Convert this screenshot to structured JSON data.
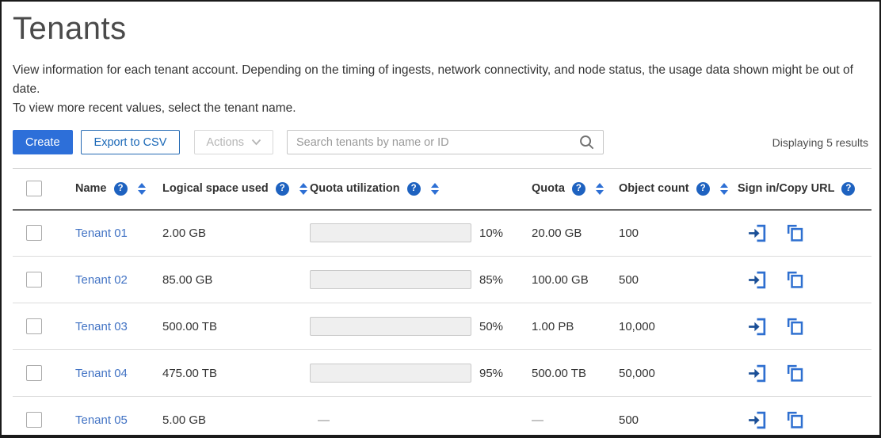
{
  "page": {
    "title": "Tenants",
    "description_line1": "View information for each tenant account. Depending on the timing of ingests, network connectivity, and node status, the usage data shown might be out of date.",
    "description_line2": "To view more recent values, select the tenant name.",
    "results_summary": "Displaying 5 results"
  },
  "toolbar": {
    "create_label": "Create",
    "export_label": "Export to CSV",
    "actions_label": "Actions",
    "search_placeholder": "Search tenants by name or ID"
  },
  "table": {
    "columns": [
      {
        "label": "Name",
        "help": true,
        "sortable": true
      },
      {
        "label": "Logical space used",
        "help": true,
        "sortable": true
      },
      {
        "label": "Quota utilization",
        "help": true,
        "sortable": true
      },
      {
        "label": "Quota",
        "help": true,
        "sortable": true
      },
      {
        "label": "Object count",
        "help": true,
        "sortable": true
      },
      {
        "label": "Sign in/Copy URL",
        "help": true,
        "sortable": false
      }
    ],
    "rows": [
      {
        "name": "Tenant 01",
        "logical_space_used": "2.00 GB",
        "quota_utilization_pct": 10,
        "quota_utilization_label": "10%",
        "bar_color": "#a9dc8e",
        "quota": "20.00 GB",
        "object_count": "100"
      },
      {
        "name": "Tenant 02",
        "logical_space_used": "85.00 GB",
        "quota_utilization_pct": 85,
        "quota_utilization_label": "85%",
        "bar_color": "#f9d98b",
        "quota": "100.00 GB",
        "object_count": "500"
      },
      {
        "name": "Tenant 03",
        "logical_space_used": "500.00 TB",
        "quota_utilization_pct": 50,
        "quota_utilization_label": "50%",
        "bar_color": "#a9dc8e",
        "quota": "1.00 PB",
        "object_count": "10,000"
      },
      {
        "name": "Tenant 04",
        "logical_space_used": "475.00 TB",
        "quota_utilization_pct": 95,
        "quota_utilization_label": "95%",
        "bar_color": "#f6caca",
        "quota": "500.00 TB",
        "object_count": "50,000"
      },
      {
        "name": "Tenant 05",
        "logical_space_used": "5.00 GB",
        "quota_utilization_pct": null,
        "quota_utilization_label": "—",
        "bar_color": null,
        "quota": "—",
        "object_count": "500"
      }
    ]
  },
  "colors": {
    "accent": "#2d6fd9",
    "link": "#4273c4",
    "icon_main": "#2e6fd0",
    "icon_dark": "#1b4f97",
    "help_bg": "#1e62c0",
    "sort": "#2d6fd4",
    "bar_green": "#a9dc8e",
    "bar_amber": "#f9d98b",
    "bar_red": "#f6caca"
  }
}
